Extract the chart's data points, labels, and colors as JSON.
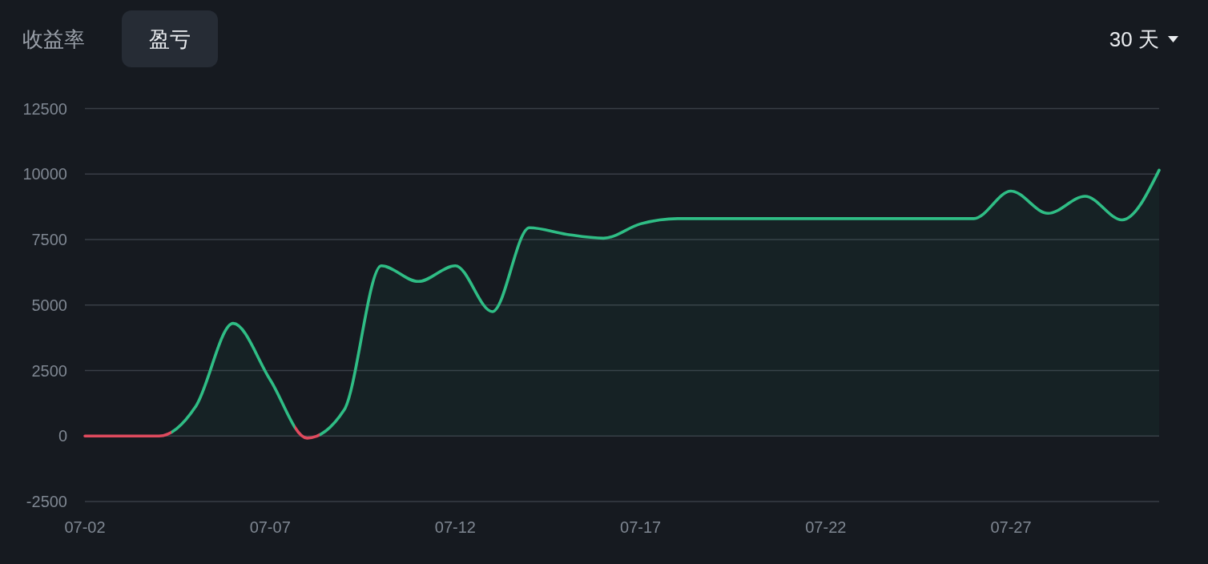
{
  "chart_data": {
    "type": "area",
    "title": "盈亏",
    "annotations": [
      "收益率",
      "30 天"
    ],
    "x": [
      "--07-02",
      "--07-03",
      "--07-04",
      "--07-05",
      "--07-06",
      "--07-07",
      "--07-08",
      "--07-09",
      "--07-10",
      "--07-11",
      "--07-12",
      "--07-13",
      "--07-14",
      "--07-15",
      "--07-16",
      "--07-17",
      "--07-18",
      "--07-19",
      "--07-20",
      "--07-21",
      "--07-22",
      "--07-23",
      "--07-24",
      "--07-25",
      "--07-26",
      "--07-27",
      "--07-28",
      "--07-29",
      "--07-30",
      "--07-31"
    ],
    "values": [
      0,
      0,
      0,
      1150,
      4300,
      2150,
      -80,
      1000,
      6500,
      5900,
      6500,
      4750,
      7950,
      7700,
      7550,
      8100,
      8300,
      8300,
      8300,
      8300,
      8300,
      8300,
      8300,
      8300,
      8300,
      9350,
      8500,
      9150,
      8250,
      10150
    ],
    "color": "#2fbd85",
    "colors": [
      "#e04a5e",
      "#e04a5e",
      "#e04a5e",
      "#2fbd85",
      "#2fbd85",
      "#2fbd85",
      "#e04a5e",
      "#2fbd85",
      "#2fbd85",
      "#2fbd85",
      "#2fbd85",
      "#2fbd85",
      "#2fbd85",
      "#2fbd85",
      "#2fbd85",
      "#2fbd85",
      "#2fbd85",
      "#2fbd85",
      "#2fbd85",
      "#2fbd85",
      "#2fbd85",
      "#2fbd85",
      "#2fbd85",
      "#2fbd85",
      "#2fbd85",
      "#2fbd85",
      "#2fbd85",
      "#2fbd85",
      "#2fbd85",
      "#2fbd85"
    ],
    "xlim": [
      "--07-02",
      "--07-31"
    ],
    "xticks": [
      {
        "value": "--07-02",
        "label": "07-02"
      },
      {
        "value": "--07-07",
        "label": "07-07"
      },
      {
        "value": "--07-12",
        "label": "07-12"
      },
      {
        "value": "--07-17",
        "label": "07-17"
      },
      {
        "value": "--07-22",
        "label": "07-22"
      },
      {
        "value": "--07-27",
        "label": "07-27"
      }
    ],
    "ylim": [
      -2500,
      12500
    ],
    "yticks": [
      -2500,
      0,
      2500,
      5000,
      7500,
      10000,
      12500
    ],
    "grid": "y"
  }
}
